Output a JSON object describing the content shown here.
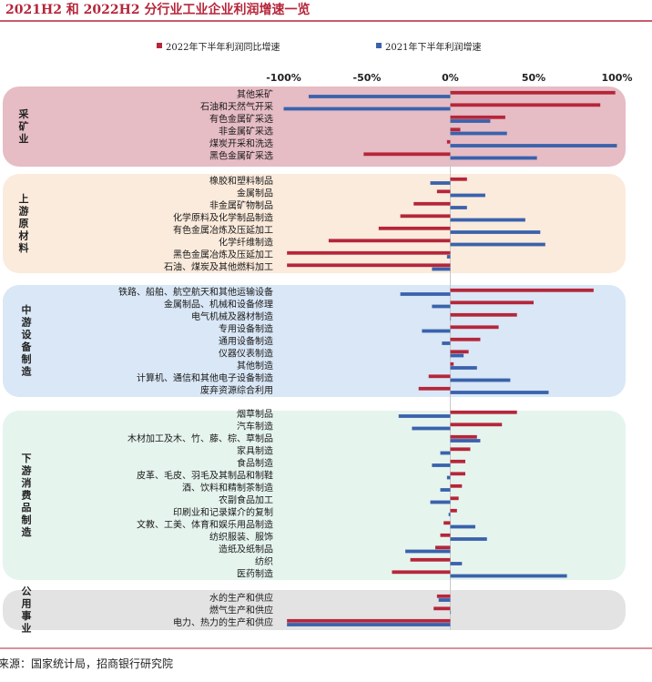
{
  "title": "图：2021H2 和 2022H2 分行业工业企业利润增速一览",
  "source": "资料来源：国家统计局，招商银行研究院",
  "chart_data": {
    "type": "bar",
    "orientation": "horizontal",
    "xlim": [
      -100,
      100
    ],
    "xticks": [
      "-100%",
      "-50%",
      "0%",
      "50%",
      "100%"
    ],
    "xtick_values": [
      -100,
      -50,
      0,
      50,
      100
    ],
    "legend_position": "top",
    "series": [
      {
        "name": "2022年下半年利润同比增速",
        "color": "#b5263a"
      },
      {
        "name": "2021年下半年利润增速",
        "color": "#3a62ac"
      }
    ],
    "groups": [
      {
        "name": "采矿业",
        "fill": "#e6bcc5",
        "items": [
          {
            "label": "其他采矿",
            "v2022": 99,
            "v2021": -85
          },
          {
            "label": "石油和天然气开采",
            "v2022": 90,
            "v2021": -100
          },
          {
            "label": "有色金属矿采选",
            "v2022": 33,
            "v2021": 24
          },
          {
            "label": "非金属矿采选",
            "v2022": 6,
            "v2021": 34
          },
          {
            "label": "煤炭开采和洗选",
            "v2022": -2,
            "v2021": 100
          },
          {
            "label": "黑色金属矿采选",
            "v2022": -52,
            "v2021": 52
          }
        ]
      },
      {
        "name": "上游原材料",
        "fill": "#fbebdc",
        "items": [
          {
            "label": "橡胶和塑料制品",
            "v2022": 10,
            "v2021": -12
          },
          {
            "label": "金属制品",
            "v2022": -8,
            "v2021": 21
          },
          {
            "label": "非金属矿物制品",
            "v2022": -22,
            "v2021": 10
          },
          {
            "label": "化学原料及化学制品制造",
            "v2022": -30,
            "v2021": 45
          },
          {
            "label": "有色金属冶炼及压延加工",
            "v2022": -43,
            "v2021": 54
          },
          {
            "label": "化学纤维制造",
            "v2022": -73,
            "v2021": 57
          },
          {
            "label": "黑色金属冶炼及压延加工",
            "v2022": -98,
            "v2021": -2
          },
          {
            "label": "石油、煤炭及其他燃料加工",
            "v2022": -98,
            "v2021": -11
          }
        ]
      },
      {
        "name": "中游设备制造",
        "fill": "#d9e7f6",
        "items": [
          {
            "label": "铁路、船舶、航空航天和其他运输设备",
            "v2022": 86,
            "v2021": -30
          },
          {
            "label": "金属制品、机械和设备修理",
            "v2022": 50,
            "v2021": -11
          },
          {
            "label": "电气机械及器材制造",
            "v2022": 40,
            "v2021": 0
          },
          {
            "label": "专用设备制造",
            "v2022": 29,
            "v2021": -17
          },
          {
            "label": "通用设备制造",
            "v2022": 18,
            "v2021": -5
          },
          {
            "label": "仪器仪表制造",
            "v2022": 11,
            "v2021": 8
          },
          {
            "label": "其他制造",
            "v2022": 2,
            "v2021": 16
          },
          {
            "label": "计算机、通信和其他电子设备制造",
            "v2022": -13,
            "v2021": 36
          },
          {
            "label": "废弃资源综合利用",
            "v2022": -19,
            "v2021": 59
          }
        ]
      },
      {
        "name": "下游消费品制造",
        "fill": "#e6f4ee",
        "items": [
          {
            "label": "烟草制品",
            "v2022": 40,
            "v2021": -31
          },
          {
            "label": "汽车制造",
            "v2022": 31,
            "v2021": -23
          },
          {
            "label": "木材加工及木、竹、藤、棕、草制品",
            "v2022": 16,
            "v2021": 18
          },
          {
            "label": "家具制造",
            "v2022": 12,
            "v2021": -6
          },
          {
            "label": "食品制造",
            "v2022": 9,
            "v2021": -11
          },
          {
            "label": "皮革、毛皮、羽毛及其制品和制鞋",
            "v2022": 9,
            "v2021": -2
          },
          {
            "label": "酒、饮料和精制茶制造",
            "v2022": 7,
            "v2021": -6
          },
          {
            "label": "农副食品加工",
            "v2022": 5,
            "v2021": -12
          },
          {
            "label": "印刷业和记录媒介的复制",
            "v2022": 4,
            "v2021": -1
          },
          {
            "label": "文教、工美、体育和娱乐用品制造",
            "v2022": -4,
            "v2021": 15
          },
          {
            "label": "纺织服装、服饰",
            "v2022": -6,
            "v2021": 22
          },
          {
            "label": "造纸及纸制品",
            "v2022": -9,
            "v2021": -27
          },
          {
            "label": "纺织",
            "v2022": -24,
            "v2021": 7
          },
          {
            "label": "医药制造",
            "v2022": -35,
            "v2021": 70
          }
        ]
      },
      {
        "name": "公用事业",
        "fill": "#e3e3e3",
        "items": [
          {
            "label": "水的生产和供应",
            "v2022": -8,
            "v2021": -7
          },
          {
            "label": "燃气生产和供应",
            "v2022": -10,
            "v2021": 0
          },
          {
            "label": "电力、热力的生产和供应",
            "v2022": -98,
            "v2021": -98
          }
        ]
      }
    ]
  }
}
